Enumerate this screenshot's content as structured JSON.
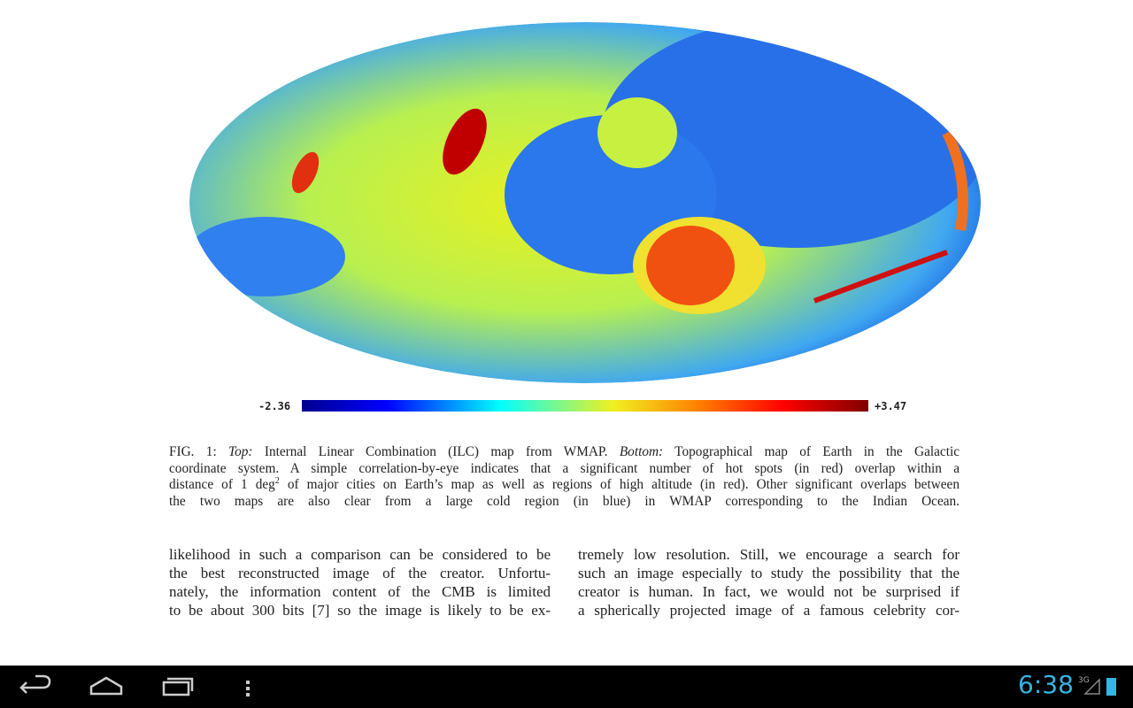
{
  "figure": {
    "scale_min_label": "-2.36",
    "scale_max_label": "+3.47"
  },
  "caption": {
    "lines": [
      [
        {
          "text": "FIG. 1: "
        },
        {
          "text": "Top:",
          "italic": true
        },
        {
          "text": " Internal Linear Combination (ILC) map from WMAP. "
        },
        {
          "text": "Bottom:",
          "italic": true
        },
        {
          "text": " Topographical map of Earth in the Galactic"
        }
      ],
      [
        {
          "text": "coordinate system. A simple correlation-by-eye indicates that a significant number of hot spots (in red) overlap within a"
        }
      ],
      [
        {
          "text": "distance of 1 deg"
        },
        {
          "text": "2",
          "sup": true
        },
        {
          "text": " of major cities on Earth’s map as well as regions of high altitude (in red). Other significant overlaps between"
        }
      ],
      [
        {
          "text": "the two maps are also clear from a large cold region (in blue) in WMAP corresponding to the Indian Ocean."
        }
      ]
    ]
  },
  "body": {
    "columns": [
      [
        "likelihood in such a comparison can be considered to be",
        "the best reconstructed image of the creator. Unfortu-",
        "nately, the information content of the CMB is limited",
        "to be about 300 bits [7] so the image is likely to be ex-"
      ],
      [
        "tremely low resolution. Still, we encourage a search for",
        "such an image especially to study the possibility that the",
        "creator is human. In fact, we would not be surprised if",
        "a spherically projected image of a famous celebrity cor-"
      ]
    ]
  },
  "status_bar": {
    "time": "6:38",
    "network": "3G"
  }
}
